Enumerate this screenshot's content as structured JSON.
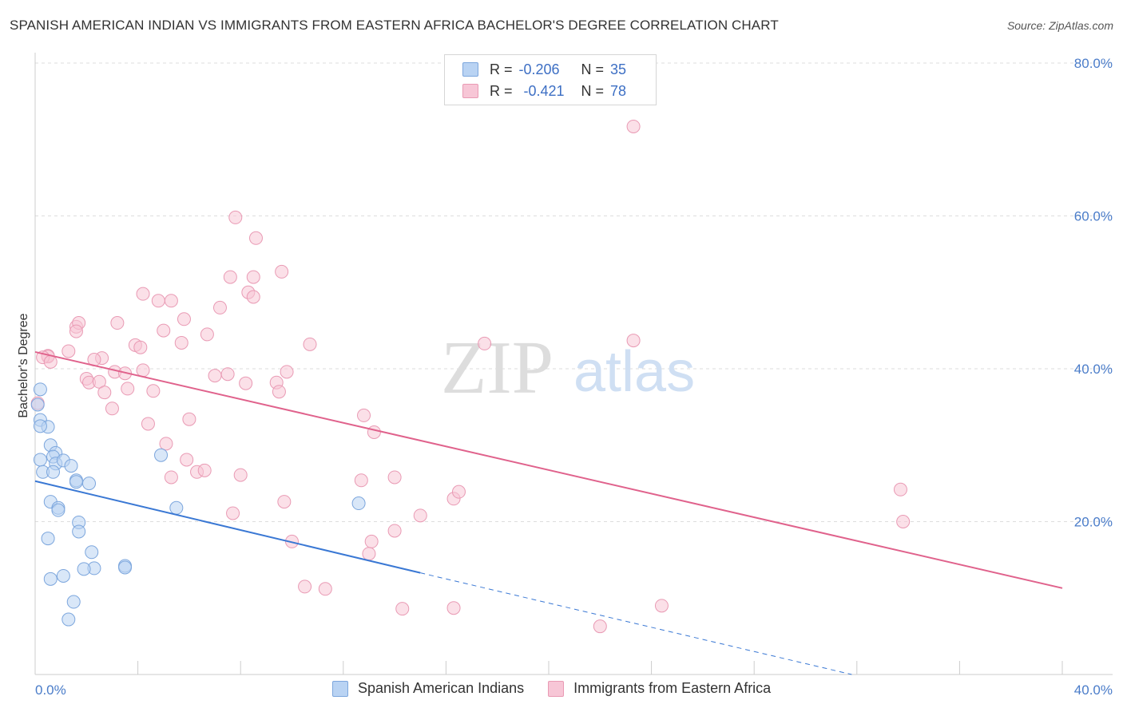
{
  "title": "SPANISH AMERICAN INDIAN VS IMMIGRANTS FROM EASTERN AFRICA BACHELOR'S DEGREE CORRELATION CHART",
  "source": "Source: ZipAtlas.com",
  "watermark": {
    "zip": "ZIP",
    "atlas": "atlas"
  },
  "legend": {
    "r_label": "R =",
    "n_label": "N =",
    "series1": {
      "r": "-0.206",
      "n": "35"
    },
    "series2": {
      "r": "-0.421",
      "n": "78"
    }
  },
  "colors": {
    "series1_fill": "#b9d3f3",
    "series1_stroke": "#7ca6dd",
    "series1_line": "#3a78d4",
    "series2_fill": "#f7c6d6",
    "series2_stroke": "#e99ab4",
    "series2_line": "#e0628c",
    "grid": "#dddddd",
    "tick_text": "#4a7cc9"
  },
  "chart_data": {
    "type": "scatter",
    "title": "SPANISH AMERICAN INDIAN VS IMMIGRANTS FROM EASTERN AFRICA BACHELOR'S DEGREE CORRELATION CHART",
    "xlabel": "",
    "ylabel": "Bachelor's Degree",
    "xlim": [
      0,
      40
    ],
    "ylim": [
      0,
      80
    ],
    "x_tick_labels": {
      "min": "0.0%",
      "max": "40.0%"
    },
    "y_ticks": [
      {
        "value": 20,
        "label": "20.0%"
      },
      {
        "value": 40,
        "label": "40.0%"
      },
      {
        "value": 60,
        "label": "60.0%"
      },
      {
        "value": 80,
        "label": "80.0%"
      }
    ],
    "grid": true,
    "series": [
      {
        "name": "Spanish American Indians",
        "points": [
          [
            0.2,
            37.3
          ],
          [
            0.1,
            35.3
          ],
          [
            0.2,
            33.3
          ],
          [
            0.5,
            32.4
          ],
          [
            0.2,
            32.5
          ],
          [
            0.6,
            30.0
          ],
          [
            0.8,
            29.0
          ],
          [
            0.7,
            28.5
          ],
          [
            0.8,
            27.6
          ],
          [
            1.1,
            28.0
          ],
          [
            1.4,
            27.3
          ],
          [
            0.2,
            28.1
          ],
          [
            0.3,
            26.5
          ],
          [
            0.7,
            26.5
          ],
          [
            1.6,
            25.4
          ],
          [
            1.6,
            25.2
          ],
          [
            2.1,
            25.0
          ],
          [
            4.9,
            28.7
          ],
          [
            0.6,
            22.6
          ],
          [
            0.9,
            21.8
          ],
          [
            0.9,
            21.5
          ],
          [
            1.7,
            19.9
          ],
          [
            1.7,
            18.7
          ],
          [
            0.5,
            17.8
          ],
          [
            2.2,
            16.0
          ],
          [
            5.5,
            21.8
          ],
          [
            12.6,
            22.4
          ],
          [
            2.3,
            13.9
          ],
          [
            1.9,
            13.8
          ],
          [
            3.5,
            14.2
          ],
          [
            3.5,
            14.0
          ],
          [
            1.1,
            12.9
          ],
          [
            0.6,
            12.5
          ],
          [
            1.5,
            9.5
          ],
          [
            1.3,
            7.2
          ]
        ],
        "trend": {
          "x0": 0,
          "y0": 25.3,
          "x1": 15.0,
          "y1": 13.3,
          "dash_to_x": 31.8,
          "dash_to_y": 0
        }
      },
      {
        "name": "Immigrants from Eastern Africa",
        "points": [
          [
            0.1,
            35.5
          ],
          [
            0.5,
            41.7
          ],
          [
            0.5,
            41.6
          ],
          [
            0.3,
            41.5
          ],
          [
            0.6,
            40.9
          ],
          [
            1.3,
            42.3
          ],
          [
            1.6,
            45.5
          ],
          [
            1.7,
            46.0
          ],
          [
            1.6,
            44.9
          ],
          [
            2.6,
            41.4
          ],
          [
            2.3,
            41.2
          ],
          [
            2.0,
            38.7
          ],
          [
            2.1,
            38.2
          ],
          [
            2.5,
            38.3
          ],
          [
            2.7,
            36.9
          ],
          [
            3.0,
            34.8
          ],
          [
            3.1,
            39.6
          ],
          [
            3.5,
            39.4
          ],
          [
            3.6,
            37.4
          ],
          [
            3.9,
            43.1
          ],
          [
            4.1,
            42.8
          ],
          [
            3.2,
            46.0
          ],
          [
            4.2,
            39.8
          ],
          [
            4.4,
            32.8
          ],
          [
            4.6,
            37.1
          ],
          [
            4.2,
            49.8
          ],
          [
            4.8,
            48.9
          ],
          [
            5.0,
            45.0
          ],
          [
            5.3,
            48.9
          ],
          [
            5.7,
            43.4
          ],
          [
            5.8,
            46.5
          ],
          [
            6.0,
            33.4
          ],
          [
            6.7,
            44.5
          ],
          [
            7.2,
            48.0
          ],
          [
            7.0,
            39.1
          ],
          [
            7.5,
            39.3
          ],
          [
            7.6,
            52.0
          ],
          [
            7.8,
            59.8
          ],
          [
            8.2,
            38.1
          ],
          [
            8.3,
            50.0
          ],
          [
            8.5,
            49.4
          ],
          [
            8.5,
            52.0
          ],
          [
            8.6,
            57.1
          ],
          [
            9.4,
            38.2
          ],
          [
            9.6,
            52.7
          ],
          [
            9.8,
            39.6
          ],
          [
            10.7,
            43.2
          ],
          [
            5.1,
            30.2
          ],
          [
            5.9,
            28.1
          ],
          [
            5.3,
            25.8
          ],
          [
            6.3,
            26.5
          ],
          [
            6.6,
            26.7
          ],
          [
            7.7,
            21.1
          ],
          [
            8.0,
            26.1
          ],
          [
            9.7,
            22.6
          ],
          [
            10.0,
            17.4
          ],
          [
            10.5,
            11.5
          ],
          [
            11.3,
            11.2
          ],
          [
            12.7,
            25.4
          ],
          [
            13.2,
            31.7
          ],
          [
            14.0,
            25.8
          ],
          [
            13.0,
            15.8
          ],
          [
            13.1,
            17.4
          ],
          [
            14.0,
            18.8
          ],
          [
            14.3,
            8.6
          ],
          [
            15.0,
            20.8
          ],
          [
            16.3,
            23.0
          ],
          [
            16.5,
            23.9
          ],
          [
            16.3,
            8.7
          ],
          [
            17.5,
            43.3
          ],
          [
            22.0,
            6.3
          ],
          [
            23.3,
            71.7
          ],
          [
            23.3,
            43.7
          ],
          [
            24.4,
            9.0
          ],
          [
            33.8,
            20.0
          ],
          [
            33.7,
            24.2
          ],
          [
            12.8,
            33.9
          ],
          [
            9.5,
            37.0
          ]
        ],
        "trend": {
          "x0": 0,
          "y0": 42.2,
          "x1": 40,
          "y1": 11.3
        }
      }
    ]
  }
}
